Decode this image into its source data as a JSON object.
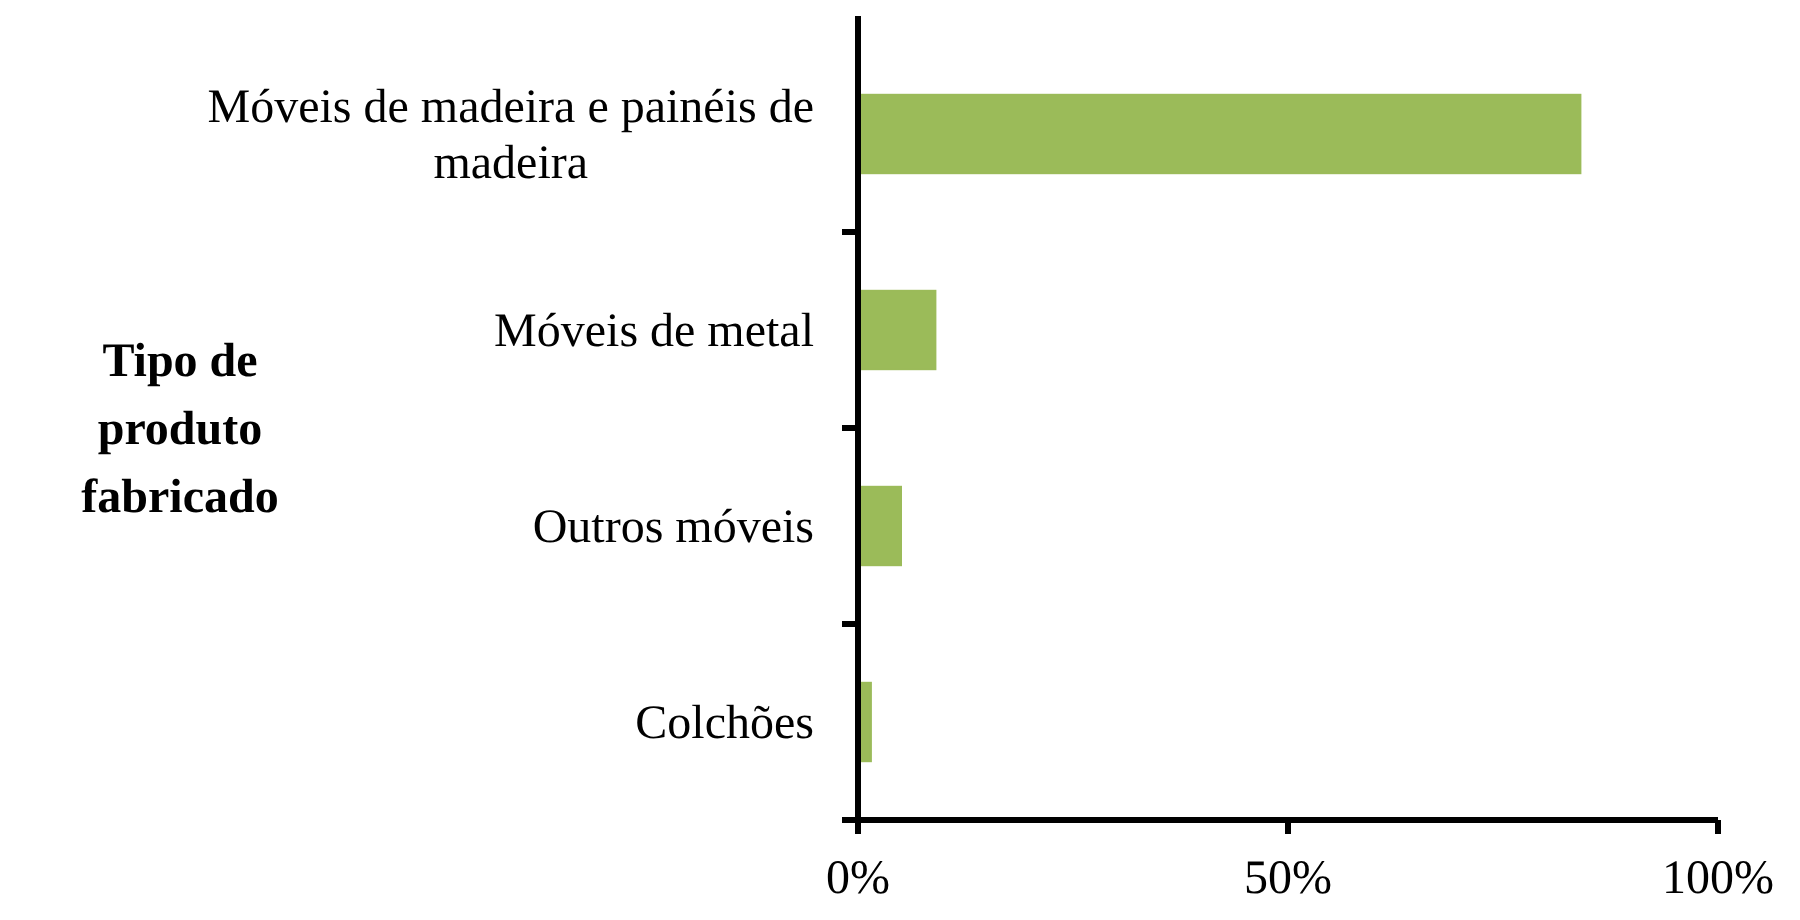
{
  "chart_data": {
    "type": "bar",
    "orientation": "horizontal",
    "ylabel": "Tipo de produto fabricado",
    "categories": [
      "Móveis de madeira e painéis de madeira",
      "Móveis de metal",
      "Outros móveis",
      "Colchões"
    ],
    "values": [
      84,
      9,
      5,
      1.5
    ],
    "color": "#9bbb59",
    "xlim": [
      0,
      100
    ],
    "xticks": [
      {
        "value": 0,
        "label": "0%"
      },
      {
        "value": 50,
        "label": "50%"
      },
      {
        "value": 100,
        "label": "100%"
      }
    ],
    "grid": false
  }
}
